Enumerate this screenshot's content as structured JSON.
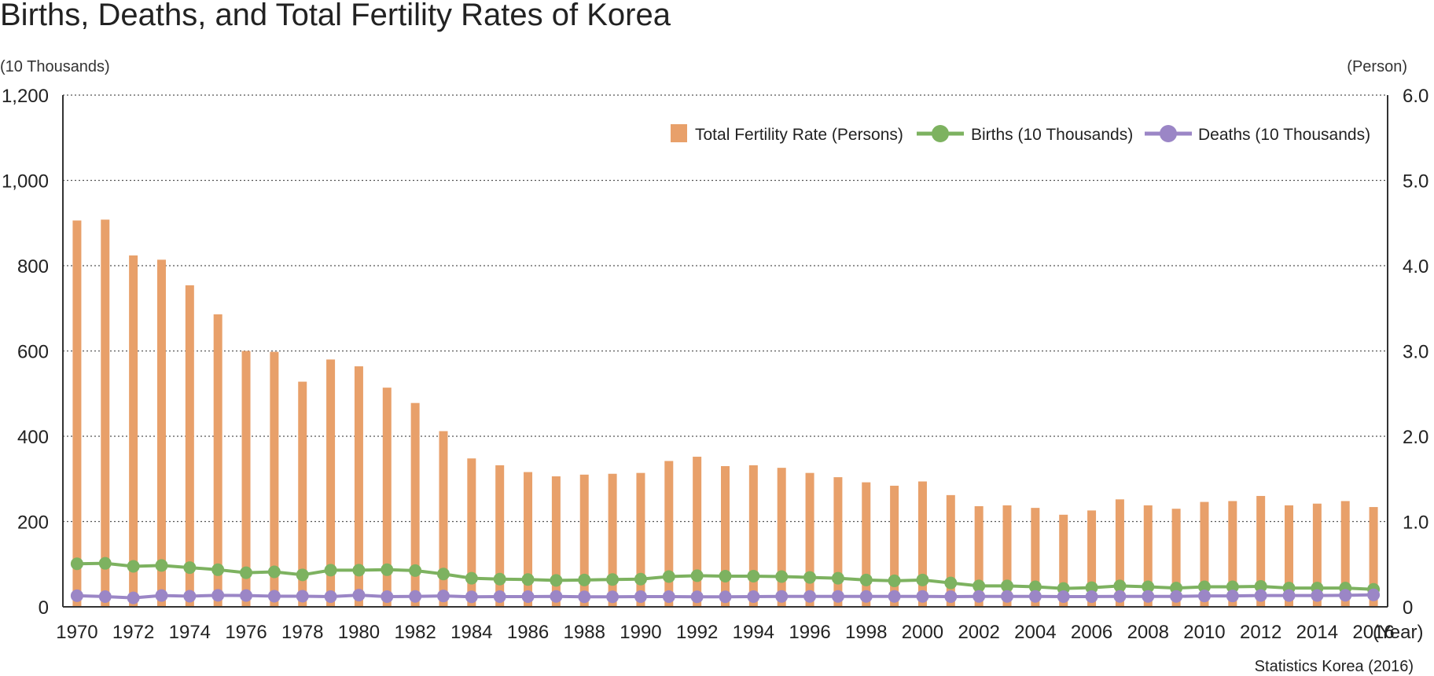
{
  "chart_data": {
    "type": "bar+line",
    "title": "Births, Deaths, and Total Fertility Rates of Korea",
    "left_unit": "(10 Thousands)",
    "right_unit": "(Person)",
    "x_unit": "(Year)",
    "source": "Statistics Korea (2016)",
    "years": [
      1970,
      1971,
      1972,
      1973,
      1974,
      1975,
      1976,
      1977,
      1978,
      1979,
      1980,
      1981,
      1982,
      1983,
      1984,
      1985,
      1986,
      1987,
      1988,
      1989,
      1990,
      1991,
      1992,
      1993,
      1994,
      1995,
      1996,
      1997,
      1998,
      1999,
      2000,
      2001,
      2002,
      2003,
      2004,
      2005,
      2006,
      2007,
      2008,
      2009,
      2010,
      2011,
      2012,
      2013,
      2014,
      2015,
      2016
    ],
    "x_tick_labels": [
      "1970",
      "1972",
      "1974",
      "1976",
      "1978",
      "1980",
      "1982",
      "1984",
      "1986",
      "1988",
      "1990",
      "1992",
      "1994",
      "1996",
      "1998",
      "2000",
      "2002",
      "2004",
      "2006",
      "2008",
      "2010",
      "2012",
      "2014",
      "2016"
    ],
    "left_axis": {
      "ylim": [
        0,
        1200
      ],
      "ticks": [
        "0",
        "200",
        "400",
        "600",
        "800",
        "1,000",
        "1,200"
      ]
    },
    "right_axis": {
      "ylim": [
        0,
        6
      ],
      "ticks": [
        "0",
        "1.0",
        "2.0",
        "3.0",
        "4.0",
        "5.0",
        "6.0"
      ]
    },
    "series": [
      {
        "name": "Total Fertility Rate (Persons)",
        "type": "bar",
        "axis": "right",
        "color": "#E8A06A",
        "values": [
          4.53,
          4.54,
          4.12,
          4.07,
          3.77,
          3.43,
          3.0,
          2.99,
          2.64,
          2.9,
          2.82,
          2.57,
          2.39,
          2.06,
          1.74,
          1.66,
          1.58,
          1.53,
          1.55,
          1.56,
          1.57,
          1.71,
          1.76,
          1.65,
          1.66,
          1.63,
          1.57,
          1.52,
          1.46,
          1.42,
          1.47,
          1.31,
          1.18,
          1.19,
          1.16,
          1.08,
          1.13,
          1.26,
          1.19,
          1.15,
          1.23,
          1.24,
          1.3,
          1.19,
          1.21,
          1.24,
          1.17
        ]
      },
      {
        "name": "Births (10 Thousands)",
        "type": "line",
        "axis": "left",
        "color": "#7DB260",
        "values": [
          101,
          102,
          95,
          97,
          92,
          87,
          80,
          82,
          75,
          86,
          86,
          87,
          85,
          77,
          67,
          65,
          64,
          62,
          63,
          64,
          65,
          71,
          73,
          72,
          72,
          71,
          69,
          67,
          63,
          61,
          63,
          56,
          49,
          49,
          47,
          43,
          45,
          49,
          47,
          44,
          47,
          47,
          48,
          44,
          44,
          44,
          41
        ]
      },
      {
        "name": "Deaths (10 Thousands)",
        "type": "line",
        "axis": "left",
        "color": "#9B86C6",
        "values": [
          26,
          24,
          21,
          26.5,
          25,
          27,
          26.5,
          25,
          25,
          24,
          27.5,
          24,
          24.5,
          25.5,
          23.5,
          24,
          24,
          24.5,
          23.5,
          23.5,
          24,
          24,
          23.5,
          23.5,
          24,
          24.5,
          24.5,
          24.5,
          24.5,
          24.5,
          24.5,
          24,
          24.5,
          24.5,
          24.5,
          24,
          24,
          24.5,
          24.5,
          24.5,
          25.5,
          25.5,
          26.5,
          26.5,
          26.5,
          27,
          28
        ]
      }
    ]
  }
}
